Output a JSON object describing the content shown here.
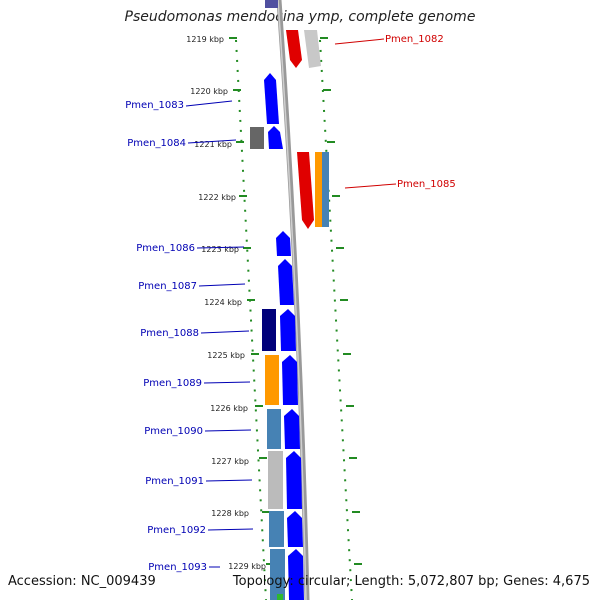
{
  "title": "Pseudomonas mendocina ymp, complete genome",
  "accession": "Accession: NC_009439",
  "summary": "Topology: circular; Length: 5,072,807 bp; Genes: 4,675",
  "ticks": [
    "1219 kbp",
    "1220 kbp",
    "1221 kbp",
    "1222 kbp",
    "1223 kbp",
    "1224 kbp",
    "1225 kbp",
    "1226 kbp",
    "1227 kbp",
    "1228 kbp",
    "1229 kbp"
  ],
  "genes": {
    "pmen_1082": "Pmen_1082",
    "pmen_1083": "Pmen_1083",
    "pmen_1084": "Pmen_1084",
    "pmen_1085": "Pmen_1085",
    "pmen_1086": "Pmen_1086",
    "pmen_1087": "Pmen_1087",
    "pmen_1088": "Pmen_1088",
    "pmen_1089": "Pmen_1089",
    "pmen_1090": "Pmen_1090",
    "pmen_1091": "Pmen_1091",
    "pmen_1092": "Pmen_1092",
    "pmen_1093": "Pmen_1093"
  },
  "colors": {
    "forward_cds": "#0000ff",
    "reverse_cds": "#e00000",
    "backbone": "#888888",
    "dots": "#228B22",
    "orange_track": "#ff9900",
    "steel_track": "#4682b4",
    "gray_track": "#bbbbbb",
    "navy_track": "#00007a"
  }
}
